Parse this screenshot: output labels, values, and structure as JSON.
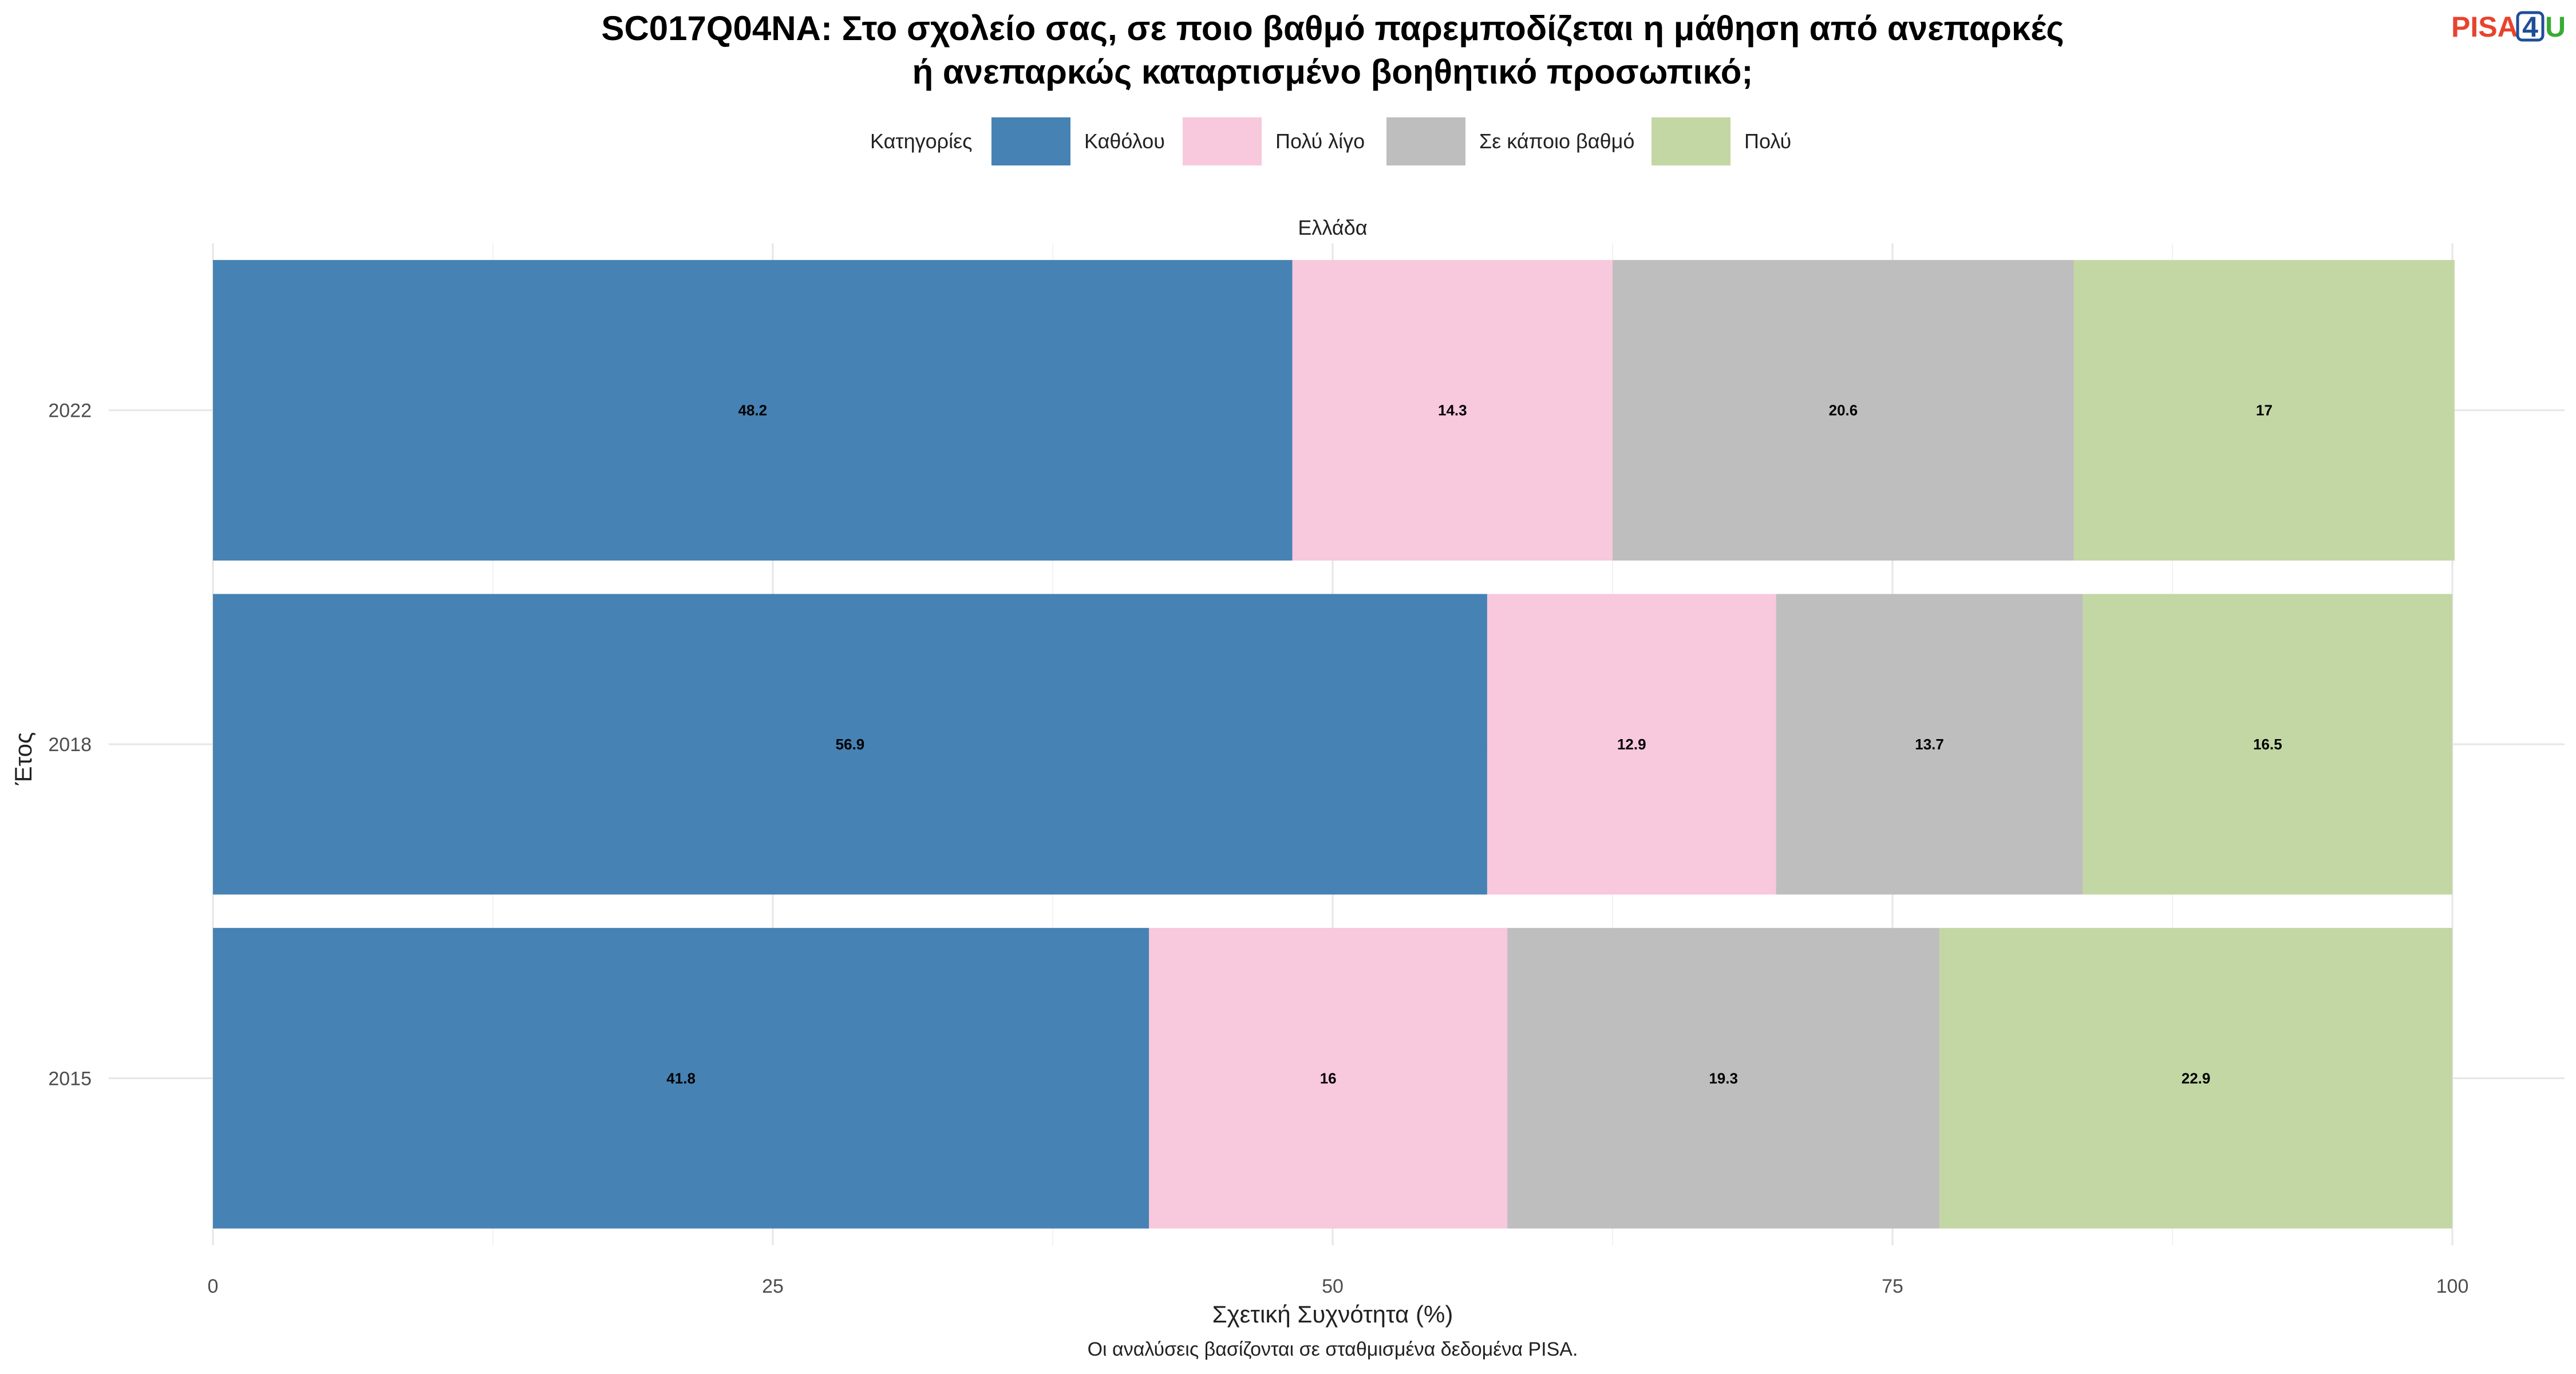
{
  "header": {
    "title_lines": [
      "SC017Q04NA: Στο σχολείο σας, σε ποιο βαθμό παρεμποδίζεται η μάθηση από ανεπαρκές",
      "ή ανεπαρκώς καταρτισμένο βοηθητικό προσωπικό;"
    ],
    "logo": {
      "pisa": "PISA",
      "four": "4",
      "u": "U",
      "colors": {
        "pisa": "#e8432e",
        "four": "#1f4e99",
        "u": "#3aaa35"
      }
    }
  },
  "legend": {
    "title": "Κατηγορίες",
    "placement": "top"
  },
  "facet_label": "Ελλάδα",
  "caption": "Οι αναλύσεις βασίζονται σε σταθμισμένα δεδομένα PISA.",
  "chart_data": {
    "type": "bar",
    "orientation": "horizontal",
    "stacked": true,
    "categories": [
      "2022",
      "2018",
      "2015"
    ],
    "series": [
      {
        "name": "Καθόλου",
        "color": "#4682b4",
        "values": [
          48.2,
          56.9,
          41.8
        ]
      },
      {
        "name": "Πολύ λίγο",
        "color": "#f8c8dc",
        "values": [
          14.3,
          12.9,
          16
        ]
      },
      {
        "name": "Σε κάποιο βαθμό",
        "color": "#bebebe",
        "values": [
          20.6,
          13.7,
          19.3
        ]
      },
      {
        "name": "Πολύ",
        "color": "#c3d7a4",
        "values": [
          17,
          16.5,
          22.9
        ]
      }
    ],
    "xlabel": "Σχετική Συχνότητα (%)",
    "ylabel": "Έτος",
    "xlim": [
      0,
      100
    ],
    "xticks": [
      0,
      25,
      50,
      75,
      100
    ],
    "grid": true
  }
}
